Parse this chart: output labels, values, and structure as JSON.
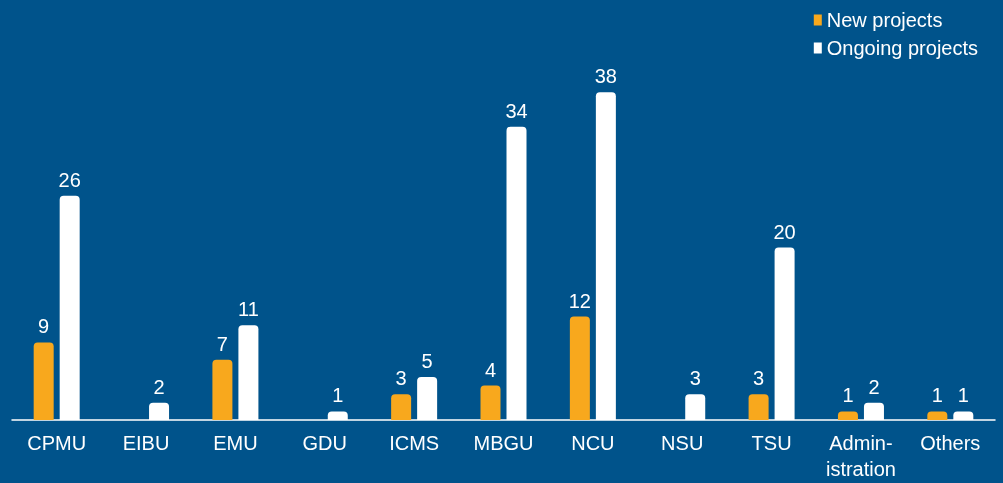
{
  "chart_data": {
    "type": "bar",
    "categories": [
      "CPMU",
      "EIBU",
      "EMU",
      "GDU",
      "ICMS",
      "MBGU",
      "NCU",
      "NSU",
      "TSU",
      "Admin-\nistration",
      "Others"
    ],
    "series": [
      {
        "name": "New projects",
        "color": "#f8a81d",
        "values": [
          9,
          null,
          7,
          null,
          3,
          4,
          12,
          null,
          3,
          1,
          1
        ]
      },
      {
        "name": "Ongoing projects",
        "color": "#ffffff",
        "values": [
          26,
          2,
          11,
          1,
          5,
          34,
          38,
          3,
          20,
          2,
          1
        ]
      }
    ],
    "data_labels": true,
    "legend": "top right"
  }
}
